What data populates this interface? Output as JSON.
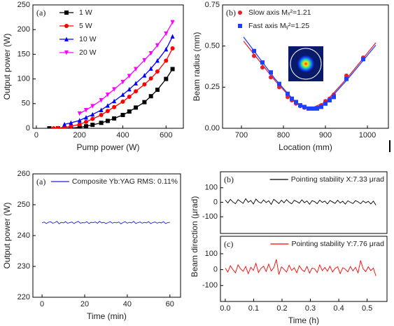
{
  "chart_data": [
    {
      "type": "line",
      "panel_label": "(a)",
      "xlabel": "Pump power (W)",
      "ylabel": "Output power (W)",
      "xlim": [
        -16,
        680
      ],
      "ylim": [
        0,
        250
      ],
      "xticks": [
        0,
        200,
        400,
        600
      ],
      "yticks": [
        0,
        50,
        100,
        150,
        200,
        250
      ],
      "legend": "upper left",
      "series": [
        {
          "name": "1 W",
          "color": "#000000",
          "marker": "square",
          "x": [
            60,
            100,
            130,
            160,
            200,
            230,
            260,
            300,
            330,
            360,
            400,
            430,
            460,
            500,
            530,
            560,
            600,
            630
          ],
          "values": [
            0,
            0,
            0,
            0.5,
            2,
            4,
            7,
            11,
            15,
            20,
            27,
            34,
            42,
            53,
            65,
            78,
            100,
            120
          ]
        },
        {
          "name": "5 W",
          "color": "#ff0000",
          "marker": "circle",
          "x": [
            80,
            100,
            130,
            160,
            200,
            230,
            260,
            300,
            330,
            360,
            400,
            430,
            460,
            500,
            530,
            560,
            600,
            630
          ],
          "values": [
            0,
            0.5,
            2,
            4,
            8,
            13,
            19,
            27,
            35,
            43,
            54,
            64,
            75,
            89,
            101,
            115,
            137,
            162
          ]
        },
        {
          "name": "10 W",
          "color": "#0000ff",
          "marker": "triangle",
          "x": [
            130,
            160,
            200,
            230,
            260,
            300,
            330,
            360,
            400,
            430,
            460,
            500,
            530,
            560,
            600,
            630
          ],
          "values": [
            8,
            11,
            16,
            22,
            28,
            37,
            46,
            55,
            68,
            79,
            91,
            107,
            121,
            137,
            160,
            186
          ]
        },
        {
          "name": "20 W",
          "color": "#ff00ff",
          "marker": "triangle-down",
          "x": [
            200,
            230,
            260,
            300,
            330,
            360,
            400,
            430,
            460,
            500,
            530,
            560,
            600,
            630
          ],
          "values": [
            30,
            37,
            45,
            57,
            68,
            79,
            94,
            106,
            120,
            138,
            152,
            168,
            192,
            215
          ]
        }
      ]
    },
    {
      "type": "scatter",
      "panel_label": "(b)",
      "xlabel": "Location (mm)",
      "ylabel": "Beam radius (mm)",
      "xlim": [
        655,
        1050
      ],
      "ylim": [
        0,
        0.75
      ],
      "xticks": [
        700,
        800,
        900,
        1000
      ],
      "yticks": [
        {
          "value": 0,
          "label": "0.00"
        },
        {
          "value": 0.25,
          "label": "0.25"
        },
        {
          "value": 0.5,
          "label": "0.50"
        },
        {
          "value": 0.75,
          "label": "0.75"
        }
      ],
      "legend": "upper left",
      "series": [
        {
          "name": "Slow axis Mₓ²=1.21",
          "color": "#e8202a",
          "marker": "circle",
          "x": [
            730,
            750,
            770,
            790,
            810,
            820,
            830,
            840,
            850,
            860,
            870,
            880,
            890,
            900,
            910,
            920,
            950,
            990
          ],
          "values": [
            0.44,
            0.37,
            0.31,
            0.25,
            0.19,
            0.17,
            0.15,
            0.135,
            0.125,
            0.12,
            0.12,
            0.125,
            0.14,
            0.165,
            0.18,
            0.205,
            0.32,
            0.43
          ],
          "fit": {
            "x": [
              705,
              780,
              830,
              865,
              900,
              950,
              1020
            ],
            "values": [
              0.53,
              0.29,
              0.15,
              0.12,
              0.16,
              0.3,
              0.52
            ]
          }
        },
        {
          "name": "Fast axis Mᵧ²=1.25",
          "color": "#1f3fff",
          "marker": "square",
          "x": [
            730,
            750,
            770,
            790,
            810,
            820,
            830,
            840,
            850,
            860,
            870,
            880,
            890,
            900,
            910,
            920,
            950,
            990
          ],
          "values": [
            0.47,
            0.4,
            0.34,
            0.27,
            0.21,
            0.18,
            0.16,
            0.14,
            0.13,
            0.12,
            0.12,
            0.12,
            0.13,
            0.15,
            0.17,
            0.19,
            0.3,
            0.42
          ],
          "fit": {
            "x": [
              705,
              780,
              830,
              865,
              900,
              950,
              1020
            ],
            "values": [
              0.555,
              0.3,
              0.155,
              0.115,
              0.15,
              0.29,
              0.505
            ]
          }
        }
      ]
    },
    {
      "type": "line",
      "panel_label": "(a)",
      "xlabel": "Time (min)",
      "ylabel": "Output power (W)",
      "xlim": [
        -4.3,
        65
      ],
      "ylim": [
        220,
        260
      ],
      "xticks": [
        0,
        20,
        40,
        60
      ],
      "yticks": [
        220,
        230,
        240,
        250,
        260
      ],
      "legend": "upper right",
      "series": [
        {
          "name": "Composite Yb:YAG RMS: 0.11%",
          "color": "#2020d0",
          "x": [
            0,
            1,
            2,
            3,
            4,
            5,
            6,
            7,
            8,
            9,
            10,
            11,
            12,
            13,
            14,
            15,
            16,
            17,
            18,
            19,
            20,
            21,
            22,
            23,
            24,
            25,
            26,
            27,
            28,
            29,
            30,
            31,
            32,
            33,
            34,
            35,
            36,
            37,
            38,
            39,
            40,
            41,
            42,
            43,
            44,
            45,
            46,
            47,
            48,
            49,
            50,
            51,
            52,
            53,
            54,
            55,
            56,
            57,
            58,
            59,
            60
          ],
          "values": [
            244.1,
            244.4,
            243.9,
            244.3,
            244.5,
            244.0,
            244.2,
            244.6,
            243.8,
            244.3,
            244.1,
            244.5,
            244.0,
            244.2,
            244.4,
            243.9,
            244.3,
            244.6,
            244.0,
            244.2,
            244.1,
            244.5,
            243.9,
            244.3,
            244.2,
            244.4,
            244.0,
            244.6,
            244.1,
            244.3,
            243.9,
            244.2,
            244.5,
            244.0,
            244.3,
            244.1,
            244.4,
            243.8,
            244.2,
            244.5,
            244.0,
            244.3,
            244.1,
            244.6,
            243.9,
            244.2,
            244.4,
            244.0,
            244.3,
            244.1,
            244.5,
            243.9,
            244.2,
            244.4,
            244.0,
            244.3,
            244.1,
            244.5,
            243.9,
            244.2,
            244.3
          ]
        }
      ]
    },
    {
      "type": "line",
      "panel_label": "(b)",
      "ylabel": "Beam direction (μrad)",
      "xlim": [
        -0.017,
        0.57
      ],
      "ylim": [
        -215,
        210
      ],
      "yticks": [
        -100,
        0,
        100
      ],
      "legend": "upper right",
      "series": [
        {
          "name": "Pointing stability X:7.33 μrad",
          "color": "#000000",
          "x": [
            0,
            0.009,
            0.018,
            0.027,
            0.036,
            0.045,
            0.054,
            0.063,
            0.072,
            0.081,
            0.09,
            0.099,
            0.108,
            0.117,
            0.126,
            0.135,
            0.144,
            0.153,
            0.162,
            0.171,
            0.18,
            0.189,
            0.198,
            0.207,
            0.216,
            0.225,
            0.234,
            0.243,
            0.252,
            0.261,
            0.27,
            0.279,
            0.288,
            0.297,
            0.306,
            0.315,
            0.324,
            0.333,
            0.342,
            0.351,
            0.36,
            0.369,
            0.378,
            0.387,
            0.396,
            0.405,
            0.414,
            0.423,
            0.432,
            0.441,
            0.45,
            0.459,
            0.468,
            0.477,
            0.486,
            0.495,
            0.504,
            0.513,
            0.522,
            0.531
          ],
          "values": [
            15,
            -5,
            20,
            2,
            -10,
            18,
            5,
            -8,
            25,
            0,
            12,
            -12,
            22,
            3,
            -6,
            16,
            -2,
            10,
            -15,
            20,
            6,
            -9,
            14,
            -4,
            18,
            1,
            -11,
            13,
            5,
            -7,
            17,
            -3,
            9,
            -14,
            11,
            4,
            -10,
            15,
            -1,
            8,
            -12,
            12,
            2,
            -8,
            14,
            -5,
            7,
            -13,
            10,
            0,
            -9,
            11,
            3,
            -10,
            9,
            -4,
            6,
            -12,
            8,
            -20
          ]
        }
      ]
    },
    {
      "type": "line",
      "panel_label": "(c)",
      "xlabel": "Time (h)",
      "xlim": [
        -0.017,
        0.57
      ],
      "ylim": [
        -200,
        210
      ],
      "xticks": [
        {
          "value": 0,
          "label": "0.0"
        },
        {
          "value": 0.1,
          "label": "0.1"
        },
        {
          "value": 0.2,
          "label": "0.2"
        },
        {
          "value": 0.3,
          "label": "0.3"
        },
        {
          "value": 0.4,
          "label": "0.4"
        },
        {
          "value": 0.5,
          "label": "0.5"
        }
      ],
      "yticks": [
        -100,
        0,
        100
      ],
      "legend": "upper right",
      "series": [
        {
          "name": "Pointing stability Y:7.76 μrad",
          "color": "#ff0000",
          "x": [
            0,
            0.009,
            0.018,
            0.027,
            0.036,
            0.045,
            0.054,
            0.063,
            0.072,
            0.081,
            0.09,
            0.099,
            0.108,
            0.117,
            0.126,
            0.135,
            0.144,
            0.153,
            0.162,
            0.171,
            0.18,
            0.189,
            0.198,
            0.207,
            0.216,
            0.225,
            0.234,
            0.243,
            0.252,
            0.261,
            0.27,
            0.279,
            0.288,
            0.297,
            0.306,
            0.315,
            0.324,
            0.333,
            0.342,
            0.351,
            0.36,
            0.369,
            0.378,
            0.387,
            0.396,
            0.405,
            0.414,
            0.423,
            0.432,
            0.441,
            0.45,
            0.459,
            0.468,
            0.477,
            0.486,
            0.495,
            0.504,
            0.513,
            0.522,
            0.531
          ],
          "values": [
            10,
            -15,
            25,
            0,
            -20,
            30,
            5,
            -10,
            20,
            -25,
            15,
            -5,
            40,
            -18,
            8,
            22,
            -12,
            35,
            -8,
            12,
            65,
            -30,
            18,
            2,
            -15,
            28,
            -5,
            12,
            -20,
            25,
            0,
            -12,
            20,
            -22,
            10,
            5,
            -18,
            30,
            -6,
            14,
            -10,
            22,
            -15,
            8,
            18,
            -25,
            12,
            3,
            -14,
            20,
            -8,
            15,
            -20,
            58,
            5,
            -12,
            18,
            -6,
            10,
            -40
          ]
        }
      ]
    }
  ]
}
